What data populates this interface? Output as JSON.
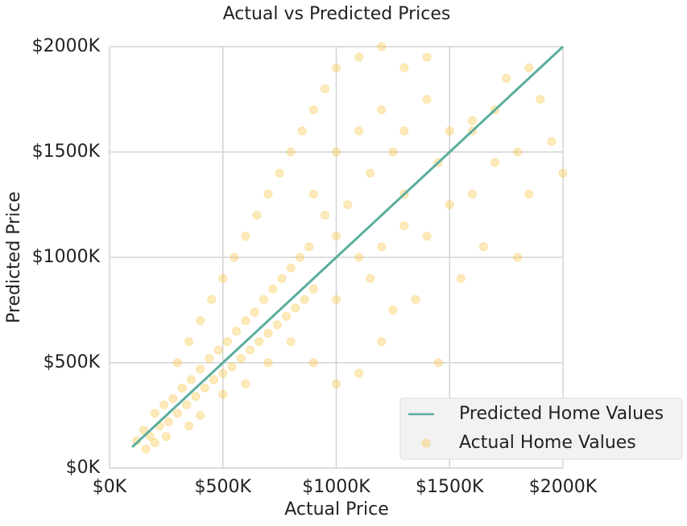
{
  "chart_data": {
    "type": "scatter",
    "title": "Actual vs Predicted Prices",
    "xlabel": "Actual Price",
    "ylabel": "Predicted Price",
    "xlim": [
      0,
      2000000
    ],
    "ylim": [
      0,
      2000000
    ],
    "xticks": [
      {
        "value": 0,
        "label": "$0K"
      },
      {
        "value": 500000,
        "label": "$500K"
      },
      {
        "value": 1000000,
        "label": "$1000K"
      },
      {
        "value": 1500000,
        "label": "$1500K"
      },
      {
        "value": 2000000,
        "label": "$2000K"
      }
    ],
    "yticks": [
      {
        "value": 0,
        "label": "$0K"
      },
      {
        "value": 500000,
        "label": "$500K"
      },
      {
        "value": 1000000,
        "label": "$1000K"
      },
      {
        "value": 1500000,
        "label": "$1500K"
      },
      {
        "value": 2000000,
        "label": "$2000K"
      }
    ],
    "grid": true,
    "legend": "lower right",
    "series": [
      {
        "name": "Predicted Home Values",
        "type": "line",
        "color": "#5aad9e",
        "x": [
          100000,
          2000000
        ],
        "values": [
          100000,
          2000000
        ]
      },
      {
        "name": "Actual Home Values",
        "type": "scatter",
        "color": "#f9c23c",
        "x": [
          150000,
          180000,
          200000,
          220000,
          240000,
          260000,
          280000,
          300000,
          320000,
          340000,
          360000,
          380000,
          400000,
          420000,
          440000,
          460000,
          480000,
          500000,
          520000,
          540000,
          560000,
          580000,
          600000,
          620000,
          640000,
          660000,
          680000,
          700000,
          720000,
          740000,
          760000,
          780000,
          800000,
          820000,
          840000,
          860000,
          880000,
          900000,
          300000,
          350000,
          400000,
          450000,
          500000,
          550000,
          600000,
          650000,
          700000,
          750000,
          800000,
          850000,
          900000,
          950000,
          1000000,
          1100000,
          1200000,
          1300000,
          1400000,
          1000000,
          1100000,
          1200000,
          1300000,
          1400000,
          1050000,
          1150000,
          1250000,
          900000,
          950000,
          1000000,
          1100000,
          1200000,
          1300000,
          1400000,
          1500000,
          1600000,
          1700000,
          1800000,
          1900000,
          2000000,
          1500000,
          1600000,
          1750000,
          1850000,
          1950000,
          1800000,
          1450000,
          1100000,
          1000000,
          900000,
          800000,
          700000,
          600000,
          500000,
          400000,
          350000,
          250000,
          200000,
          120000,
          160000,
          1250000,
          1350000,
          1550000,
          1650000,
          1200000,
          1000000,
          1150000,
          1300000,
          1450000,
          1600000,
          1700000,
          1850000
        ],
        "values": [
          180000,
          150000,
          260000,
          200000,
          300000,
          220000,
          330000,
          260000,
          380000,
          300000,
          420000,
          340000,
          470000,
          380000,
          520000,
          420000,
          560000,
          450000,
          600000,
          480000,
          650000,
          520000,
          700000,
          560000,
          740000,
          600000,
          800000,
          640000,
          850000,
          680000,
          900000,
          720000,
          950000,
          760000,
          1000000,
          800000,
          1050000,
          850000,
          500000,
          600000,
          700000,
          800000,
          900000,
          1000000,
          1100000,
          1200000,
          1300000,
          1400000,
          1500000,
          1600000,
          1700000,
          1800000,
          1900000,
          1950000,
          2000000,
          1900000,
          1950000,
          1500000,
          1600000,
          1700000,
          1600000,
          1750000,
          1250000,
          1400000,
          1500000,
          1300000,
          1200000,
          1100000,
          1000000,
          1050000,
          1150000,
          1100000,
          1250000,
          1300000,
          1450000,
          1500000,
          1750000,
          1400000,
          1600000,
          1650000,
          1850000,
          1300000,
          1550000,
          1000000,
          500000,
          450000,
          400000,
          500000,
          600000,
          500000,
          400000,
          350000,
          250000,
          200000,
          150000,
          120000,
          130000,
          90000,
          750000,
          800000,
          900000,
          1050000,
          600000,
          800000,
          900000,
          1300000,
          1450000,
          1600000,
          1700000,
          1900000
        ]
      }
    ]
  }
}
